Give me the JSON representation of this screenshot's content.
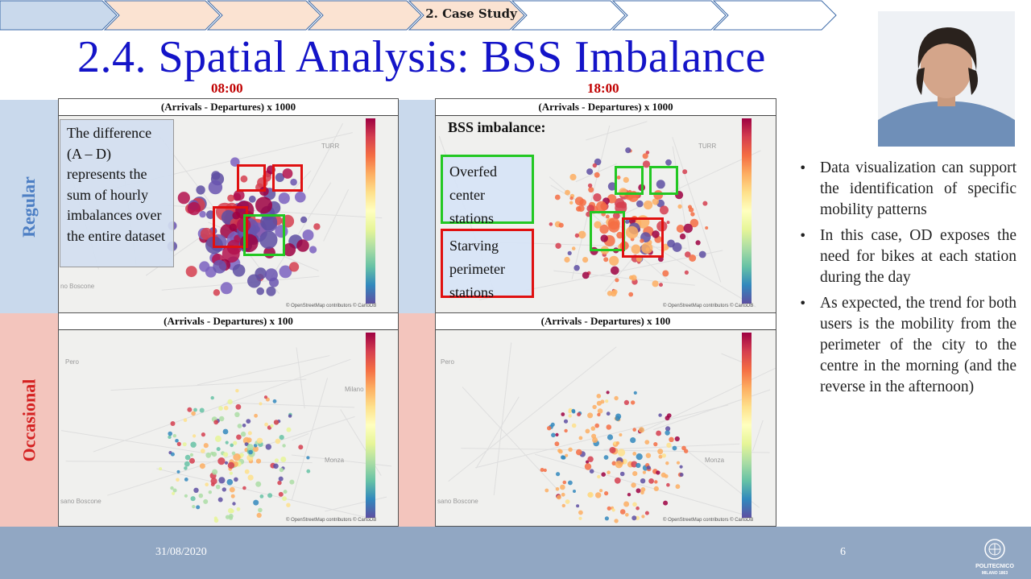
{
  "breadcrumb": {
    "active_label": "2. Case Study"
  },
  "title": "2.4. Spatial Analysis: BSS Imbalance",
  "times": {
    "morning": "08:00",
    "evening": "18:00"
  },
  "rows": {
    "regular": "Regular",
    "occasional": "Occasional"
  },
  "panels": {
    "regular_morning": {
      "header": "(Arrivals - Departures) x 1000"
    },
    "regular_evening": {
      "header": "(Arrivals - Departures) x 1000"
    },
    "occasional_morning": {
      "header": "(Arrivals - Departures) x 100"
    },
    "occasional_evening": {
      "header": "(Arrivals - Departures) x 100"
    }
  },
  "map": {
    "attribution": "© OpenStreetMap contributors © CartoDB",
    "place_bosccone": "no Boscone",
    "place_torino": "TURR",
    "place_sano_boscone": "sano Boscone",
    "place_pero": "Pero",
    "place_milano": "Milano",
    "place_monza": "Monza"
  },
  "notes": {
    "difference": "The difference (A – D) represents the sum of hourly imbalances over the entire dataset",
    "bss_imbalance": "BSS imbalance:",
    "overfed": "Overfed center stations",
    "starving": "Starving perimeter stations"
  },
  "bullets": [
    "Data visualization can support the identification of specific mobility patterns",
    "In this case, OD exposes the need for bikes at each station during the day",
    "As expected, the trend for both users is the mobility from the perimeter of the city to the centre in the morning (and the reverse in the afternoon)"
  ],
  "footer": {
    "date": "31/08/2020",
    "page": "6",
    "logo_line1": "POLITECNICO",
    "logo_line2": "MILANO 1863"
  },
  "colors": {
    "title": "#1414c8",
    "accent_red": "#c00000",
    "regular_bg": "#c9d9ec",
    "occasional_bg": "#f3c5bd",
    "footer": "#91a7c3"
  }
}
